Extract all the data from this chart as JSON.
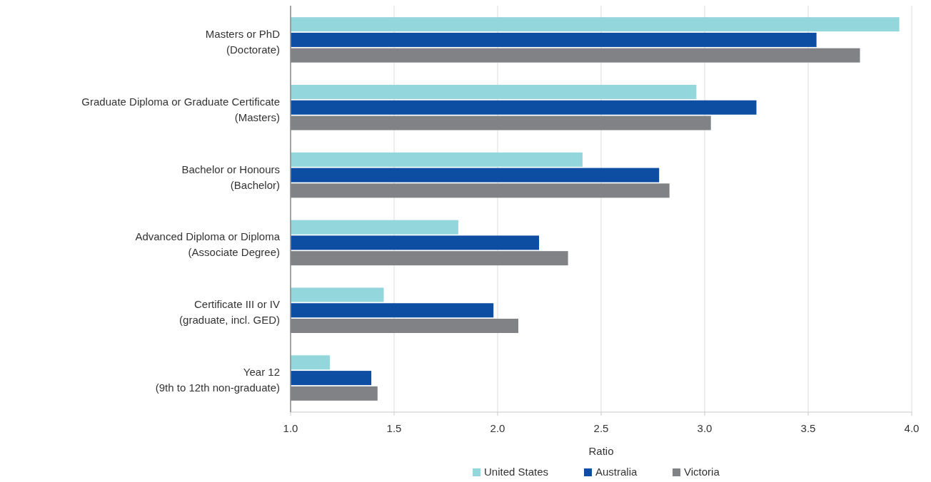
{
  "chart_data": {
    "type": "bar",
    "orientation": "horizontal",
    "categories": [
      "Masters or PhD\n(Doctorate)",
      "Graduate Diploma or Graduate Certificate\n(Masters)",
      "Bachelor or Honours\n(Bachelor)",
      "Advanced Diploma or Diploma\n(Associate Degree)",
      "Certificate III or IV\n(graduate, incl. GED)",
      "Year 12\n(9th to 12th non-graduate)"
    ],
    "series": [
      {
        "name": "United States",
        "color": "#93d6dc",
        "values": [
          3.94,
          2.96,
          2.41,
          1.81,
          1.45,
          1.19
        ]
      },
      {
        "name": "Australia",
        "color": "#0d4ea3",
        "values": [
          3.54,
          3.25,
          2.78,
          2.2,
          1.98,
          1.39
        ]
      },
      {
        "name": "Victoria",
        "color": "#808285",
        "values": [
          3.75,
          3.03,
          2.83,
          2.34,
          2.1,
          1.42
        ]
      }
    ],
    "xlabel": "Ratio",
    "xlim": [
      1,
      4
    ],
    "xticks": [
      {
        "value": 1,
        "label": "1.0"
      },
      1.5,
      {
        "value": 2,
        "label": "2.0"
      },
      2.5,
      {
        "value": 3,
        "label": "3.0"
      },
      3.5,
      {
        "value": 4,
        "label": "4.0"
      }
    ],
    "grid": "x",
    "legend": "bottom"
  }
}
